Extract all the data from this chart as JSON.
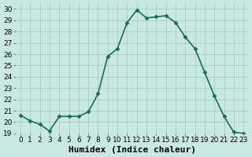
{
  "x": [
    0,
    1,
    2,
    3,
    4,
    5,
    6,
    7,
    8,
    9,
    10,
    11,
    12,
    13,
    14,
    15,
    16,
    17,
    18,
    19,
    20,
    21,
    22,
    23
  ],
  "y": [
    20.6,
    20.1,
    19.8,
    19.2,
    20.5,
    20.5,
    20.5,
    20.9,
    22.5,
    25.8,
    26.5,
    28.8,
    29.9,
    29.2,
    29.3,
    29.4,
    28.8,
    27.5,
    26.5,
    24.4,
    22.3,
    20.5,
    19.1,
    19.0
  ],
  "line_color": "#1a6b5a",
  "marker": "D",
  "marker_size": 2.5,
  "bg_color": "#c9e8e0",
  "grid_color": "#a0c8c0",
  "xlabel": "Humidex (Indice chaleur)",
  "xlim": [
    -0.5,
    23.5
  ],
  "ylim": [
    19,
    30.5
  ],
  "yticks": [
    19,
    20,
    21,
    22,
    23,
    24,
    25,
    26,
    27,
    28,
    29,
    30
  ],
  "xticks": [
    0,
    1,
    2,
    3,
    4,
    5,
    6,
    7,
    8,
    9,
    10,
    11,
    12,
    13,
    14,
    15,
    16,
    17,
    18,
    19,
    20,
    21,
    22,
    23
  ],
  "tick_fontsize": 6.5,
  "xlabel_fontsize": 8.0,
  "linewidth": 1.2
}
